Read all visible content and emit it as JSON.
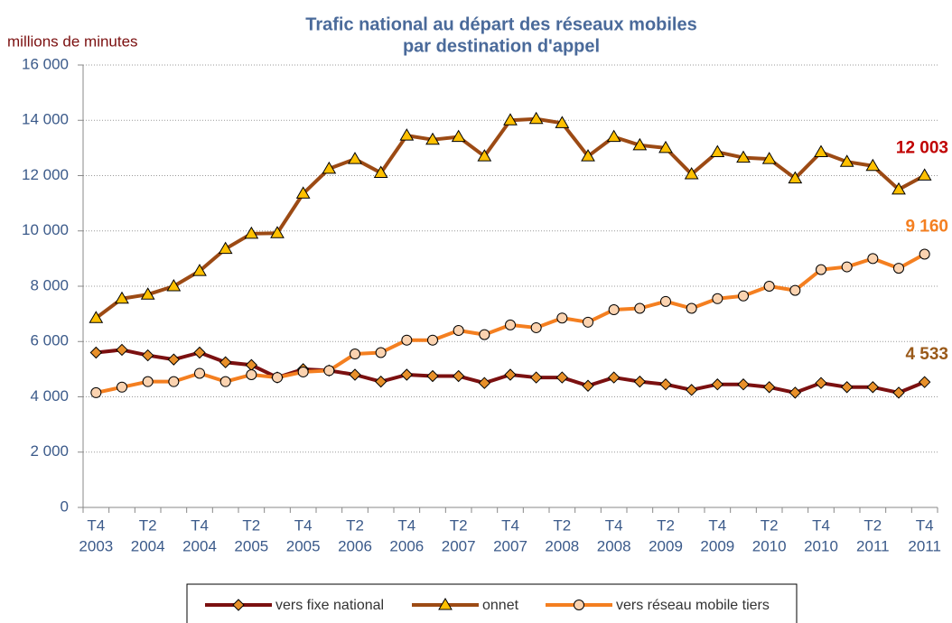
{
  "chart_data": {
    "type": "line",
    "title": [
      "Trafic national au départ des réseaux mobiles",
      "par destination d'appel"
    ],
    "y_label": "millions de minutes",
    "categories": [
      [
        "T4",
        "2003"
      ],
      null,
      [
        "T2",
        "2004"
      ],
      null,
      [
        "T4",
        "2004"
      ],
      null,
      [
        "T2",
        "2005"
      ],
      null,
      [
        "T4",
        "2005"
      ],
      null,
      [
        "T2",
        "2006"
      ],
      null,
      [
        "T4",
        "2006"
      ],
      null,
      [
        "T2",
        "2007"
      ],
      null,
      [
        "T4",
        "2007"
      ],
      null,
      [
        "T2",
        "2008"
      ],
      null,
      [
        "T4",
        "2008"
      ],
      null,
      [
        "T2",
        "2009"
      ],
      null,
      [
        "T4",
        "2009"
      ],
      null,
      [
        "T2",
        "2010"
      ],
      null,
      [
        "T4",
        "2010"
      ],
      null,
      [
        "T2",
        "2011"
      ],
      null,
      [
        "T4",
        "2011"
      ]
    ],
    "ylim": [
      0,
      16000
    ],
    "yticks": [
      0,
      {
        "value": 2000,
        "label": "2 000"
      },
      {
        "value": 4000,
        "label": "4 000"
      },
      {
        "value": 6000,
        "label": "6 000"
      },
      {
        "value": 8000,
        "label": "8 000"
      },
      {
        "value": 10000,
        "label": "10 000"
      },
      {
        "value": 12000,
        "label": "12 000"
      },
      {
        "value": 14000,
        "label": "14 000"
      },
      {
        "value": 16000,
        "label": "16 000"
      }
    ],
    "grid": true,
    "legend": "bottom",
    "series": [
      {
        "name": "vers fixe national",
        "color": "#7b1010",
        "marker": "diamond",
        "marker_color": "#e8902a",
        "label_color": "#9a5a1a",
        "values": [
          5600,
          5700,
          5500,
          5350,
          5600,
          5250,
          5150,
          4700,
          5000,
          4950,
          4800,
          4550,
          4800,
          4750,
          4750,
          4500,
          4800,
          4700,
          4700,
          4400,
          4700,
          4550,
          4450,
          4250,
          4450,
          4450,
          4350,
          4150,
          4500,
          4350,
          4350,
          4150,
          4533
        ],
        "value_labels": [
          null,
          null,
          null,
          null,
          null,
          null,
          null,
          null,
          null,
          null,
          null,
          null,
          null,
          null,
          null,
          null,
          null,
          null,
          null,
          null,
          null,
          null,
          null,
          null,
          null,
          null,
          null,
          null,
          null,
          null,
          null,
          null,
          "4 533"
        ]
      },
      {
        "name": "onnet",
        "color": "#9c4a14",
        "marker": "triangle",
        "marker_color": "#ffc000",
        "label_color": "#c00000",
        "values": [
          6850,
          7550,
          7700,
          8000,
          8550,
          9350,
          9900,
          9920,
          11350,
          12250,
          12600,
          12100,
          13450,
          13300,
          13400,
          12700,
          14000,
          14050,
          13900,
          12700,
          13400,
          13100,
          13000,
          12050,
          12850,
          12650,
          12600,
          11900,
          12850,
          12500,
          12350,
          11500,
          12003
        ],
        "value_labels": [
          null,
          null,
          null,
          null,
          null,
          null,
          null,
          null,
          null,
          null,
          null,
          null,
          null,
          null,
          null,
          null,
          null,
          null,
          null,
          null,
          null,
          null,
          null,
          null,
          null,
          null,
          null,
          null,
          null,
          null,
          null,
          null,
          "12 003"
        ]
      },
      {
        "name": "vers réseau mobile tiers",
        "color": "#f47f20",
        "marker": "circle",
        "marker_color": "#fbd3b0",
        "label_color": "#f47f20",
        "values": [
          4150,
          4350,
          4550,
          4550,
          4850,
          4550,
          4800,
          4700,
          4900,
          4950,
          5550,
          5600,
          6050,
          6050,
          6400,
          6250,
          6600,
          6500,
          6850,
          6700,
          7150,
          7200,
          7450,
          7200,
          7550,
          7650,
          8000,
          7850,
          8600,
          8700,
          9000,
          8650,
          9160
        ],
        "value_labels": [
          null,
          null,
          null,
          null,
          null,
          null,
          null,
          null,
          null,
          null,
          null,
          null,
          null,
          null,
          null,
          null,
          null,
          null,
          null,
          null,
          null,
          null,
          null,
          null,
          null,
          null,
          null,
          null,
          null,
          null,
          null,
          null,
          "9 160"
        ]
      }
    ]
  }
}
